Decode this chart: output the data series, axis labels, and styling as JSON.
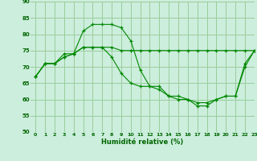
{
  "bg_color": "#cceedd",
  "grid_color": "#99cc99",
  "line_color": "#008800",
  "xlabel": "Humidité relative (%)",
  "xlabel_color": "#006600",
  "tick_color": "#006600",
  "ylim": [
    50,
    90
  ],
  "xlim": [
    -0.5,
    23
  ],
  "yticks": [
    50,
    55,
    60,
    65,
    70,
    75,
    80,
    85,
    90
  ],
  "xticks": [
    0,
    1,
    2,
    3,
    4,
    5,
    6,
    7,
    8,
    9,
    10,
    11,
    12,
    13,
    14,
    15,
    16,
    17,
    18,
    19,
    20,
    21,
    22,
    23
  ],
  "series": [
    [
      67,
      71,
      71,
      73,
      74,
      81,
      83,
      83,
      83,
      82,
      78,
      69,
      64,
      64,
      61,
      61,
      60,
      58,
      58,
      60,
      61,
      61,
      71,
      75
    ],
    [
      67,
      71,
      71,
      73,
      74,
      76,
      76,
      76,
      76,
      75,
      75,
      75,
      75,
      75,
      75,
      75,
      75,
      75,
      75,
      75,
      75,
      75,
      75,
      75
    ],
    [
      67,
      71,
      71,
      74,
      74,
      76,
      76,
      76,
      73,
      68,
      65,
      64,
      64,
      63,
      61,
      60,
      60,
      59,
      59,
      60,
      61,
      61,
      70,
      75
    ]
  ]
}
